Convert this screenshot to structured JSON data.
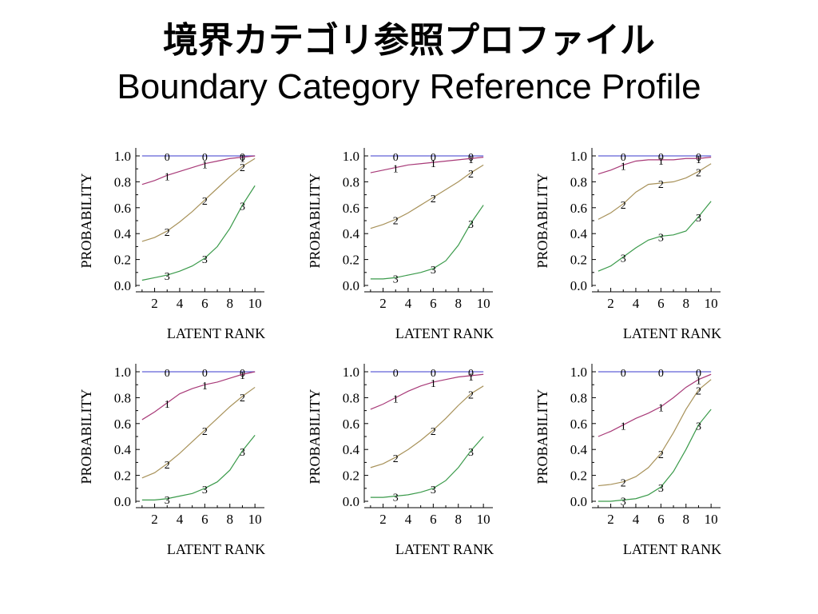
{
  "slide": {
    "title_jp": "境界カテゴリ参照プロファイル",
    "title_en": "Boundary Category Reference Profile"
  },
  "chart_data": [
    {
      "type": "line",
      "xlabel": "LATENT RANK",
      "ylabel": "PROBABILITY",
      "xlim": [
        0.5,
        10.5
      ],
      "ylim": [
        0,
        1
      ],
      "xticks": [
        "2",
        "4",
        "6",
        "8",
        "10"
      ],
      "yticks": [
        "0.0",
        "0.2",
        "0.4",
        "0.6",
        "0.8",
        "1.0"
      ],
      "x": [
        1,
        2,
        3,
        4,
        5,
        6,
        7,
        8,
        9,
        10
      ],
      "series": [
        {
          "name": "0",
          "values": [
            1,
            1,
            1,
            1,
            1,
            1,
            1,
            1,
            1,
            1
          ]
        },
        {
          "name": "1",
          "values": [
            0.78,
            0.81,
            0.85,
            0.88,
            0.91,
            0.94,
            0.96,
            0.98,
            0.99,
            1.0
          ]
        },
        {
          "name": "2",
          "values": [
            0.34,
            0.37,
            0.42,
            0.49,
            0.57,
            0.66,
            0.75,
            0.84,
            0.92,
            0.98
          ]
        },
        {
          "name": "3",
          "values": [
            0.04,
            0.06,
            0.08,
            0.11,
            0.15,
            0.21,
            0.3,
            0.44,
            0.62,
            0.77
          ]
        }
      ]
    },
    {
      "type": "line",
      "xlabel": "LATENT RANK",
      "ylabel": "PROBABILITY",
      "xlim": [
        0.5,
        10.5
      ],
      "ylim": [
        0,
        1
      ],
      "xticks": [
        "2",
        "4",
        "6",
        "8",
        "10"
      ],
      "yticks": [
        "0.0",
        "0.2",
        "0.4",
        "0.6",
        "0.8",
        "1.0"
      ],
      "x": [
        1,
        2,
        3,
        4,
        5,
        6,
        7,
        8,
        9,
        10
      ],
      "series": [
        {
          "name": "0",
          "values": [
            1,
            1,
            1,
            1,
            1,
            1,
            1,
            1,
            1,
            1
          ]
        },
        {
          "name": "1",
          "values": [
            0.87,
            0.89,
            0.91,
            0.93,
            0.94,
            0.95,
            0.96,
            0.97,
            0.98,
            0.99
          ]
        },
        {
          "name": "2",
          "values": [
            0.44,
            0.47,
            0.51,
            0.56,
            0.62,
            0.68,
            0.74,
            0.8,
            0.87,
            0.93
          ]
        },
        {
          "name": "3",
          "values": [
            0.05,
            0.05,
            0.06,
            0.08,
            0.1,
            0.13,
            0.19,
            0.31,
            0.48,
            0.62
          ]
        }
      ]
    },
    {
      "type": "line",
      "xlabel": "LATENT RANK",
      "ylabel": "PROBABILITY",
      "xlim": [
        0.5,
        10.5
      ],
      "ylim": [
        0,
        1
      ],
      "xticks": [
        "2",
        "4",
        "6",
        "8",
        "10"
      ],
      "yticks": [
        "0.0",
        "0.2",
        "0.4",
        "0.6",
        "0.8",
        "1.0"
      ],
      "x": [
        1,
        2,
        3,
        4,
        5,
        6,
        7,
        8,
        9,
        10
      ],
      "series": [
        {
          "name": "0",
          "values": [
            1,
            1,
            1,
            1,
            1,
            1,
            1,
            1,
            1,
            1
          ]
        },
        {
          "name": "1",
          "values": [
            0.86,
            0.89,
            0.93,
            0.96,
            0.97,
            0.97,
            0.97,
            0.98,
            0.98,
            0.99
          ]
        },
        {
          "name": "2",
          "values": [
            0.51,
            0.56,
            0.63,
            0.72,
            0.78,
            0.79,
            0.8,
            0.83,
            0.88,
            0.94
          ]
        },
        {
          "name": "3",
          "values": [
            0.11,
            0.15,
            0.22,
            0.29,
            0.35,
            0.38,
            0.39,
            0.42,
            0.53,
            0.65
          ]
        }
      ]
    },
    {
      "type": "line",
      "xlabel": "LATENT RANK",
      "ylabel": "PROBABILITY",
      "xlim": [
        0.5,
        10.5
      ],
      "ylim": [
        0,
        1
      ],
      "xticks": [
        "2",
        "4",
        "6",
        "8",
        "10"
      ],
      "yticks": [
        "0.0",
        "0.2",
        "0.4",
        "0.6",
        "0.8",
        "1.0"
      ],
      "x": [
        1,
        2,
        3,
        4,
        5,
        6,
        7,
        8,
        9,
        10
      ],
      "series": [
        {
          "name": "0",
          "values": [
            1,
            1,
            1,
            1,
            1,
            1,
            1,
            1,
            1,
            1
          ]
        },
        {
          "name": "1",
          "values": [
            0.63,
            0.69,
            0.76,
            0.83,
            0.87,
            0.9,
            0.92,
            0.95,
            0.98,
            1.0
          ]
        },
        {
          "name": "2",
          "values": [
            0.18,
            0.22,
            0.29,
            0.37,
            0.46,
            0.55,
            0.64,
            0.73,
            0.81,
            0.88
          ]
        },
        {
          "name": "3",
          "values": [
            0.01,
            0.01,
            0.02,
            0.04,
            0.06,
            0.1,
            0.15,
            0.24,
            0.39,
            0.51
          ]
        }
      ]
    },
    {
      "type": "line",
      "xlabel": "LATENT RANK",
      "ylabel": "PROBABILITY",
      "xlim": [
        0.5,
        10.5
      ],
      "ylim": [
        0,
        1
      ],
      "xticks": [
        "2",
        "4",
        "6",
        "8",
        "10"
      ],
      "yticks": [
        "0.0",
        "0.2",
        "0.4",
        "0.6",
        "0.8",
        "1.0"
      ],
      "x": [
        1,
        2,
        3,
        4,
        5,
        6,
        7,
        8,
        9,
        10
      ],
      "series": [
        {
          "name": "0",
          "values": [
            1,
            1,
            1,
            1,
            1,
            1,
            1,
            1,
            1,
            1
          ]
        },
        {
          "name": "1",
          "values": [
            0.71,
            0.75,
            0.8,
            0.85,
            0.89,
            0.92,
            0.94,
            0.96,
            0.97,
            0.98
          ]
        },
        {
          "name": "2",
          "values": [
            0.26,
            0.29,
            0.34,
            0.4,
            0.47,
            0.55,
            0.64,
            0.74,
            0.83,
            0.89
          ]
        },
        {
          "name": "3",
          "values": [
            0.03,
            0.03,
            0.04,
            0.05,
            0.07,
            0.1,
            0.16,
            0.26,
            0.39,
            0.5
          ]
        }
      ]
    },
    {
      "type": "line",
      "xlabel": "LATENT RANK",
      "ylabel": "PROBABILITY",
      "xlim": [
        0.5,
        10.5
      ],
      "ylim": [
        0,
        1
      ],
      "xticks": [
        "2",
        "4",
        "6",
        "8",
        "10"
      ],
      "yticks": [
        "0.0",
        "0.2",
        "0.4",
        "0.6",
        "0.8",
        "1.0"
      ],
      "x": [
        1,
        2,
        3,
        4,
        5,
        6,
        7,
        8,
        9,
        10
      ],
      "series": [
        {
          "name": "0",
          "values": [
            1,
            1,
            1,
            1,
            1,
            1,
            1,
            1,
            1,
            1
          ]
        },
        {
          "name": "1",
          "values": [
            0.5,
            0.54,
            0.59,
            0.64,
            0.68,
            0.73,
            0.8,
            0.88,
            0.94,
            0.98
          ]
        },
        {
          "name": "2",
          "values": [
            0.12,
            0.13,
            0.15,
            0.19,
            0.26,
            0.37,
            0.53,
            0.71,
            0.86,
            0.94
          ]
        },
        {
          "name": "3",
          "values": [
            0.0,
            0.0,
            0.01,
            0.02,
            0.05,
            0.11,
            0.23,
            0.4,
            0.59,
            0.71
          ]
        }
      ]
    }
  ],
  "colors": {
    "series_0": "#6060d8",
    "series_1": "#a83a78",
    "series_2": "#a8925a",
    "series_3": "#3a9a4a",
    "axis": "#000000"
  }
}
